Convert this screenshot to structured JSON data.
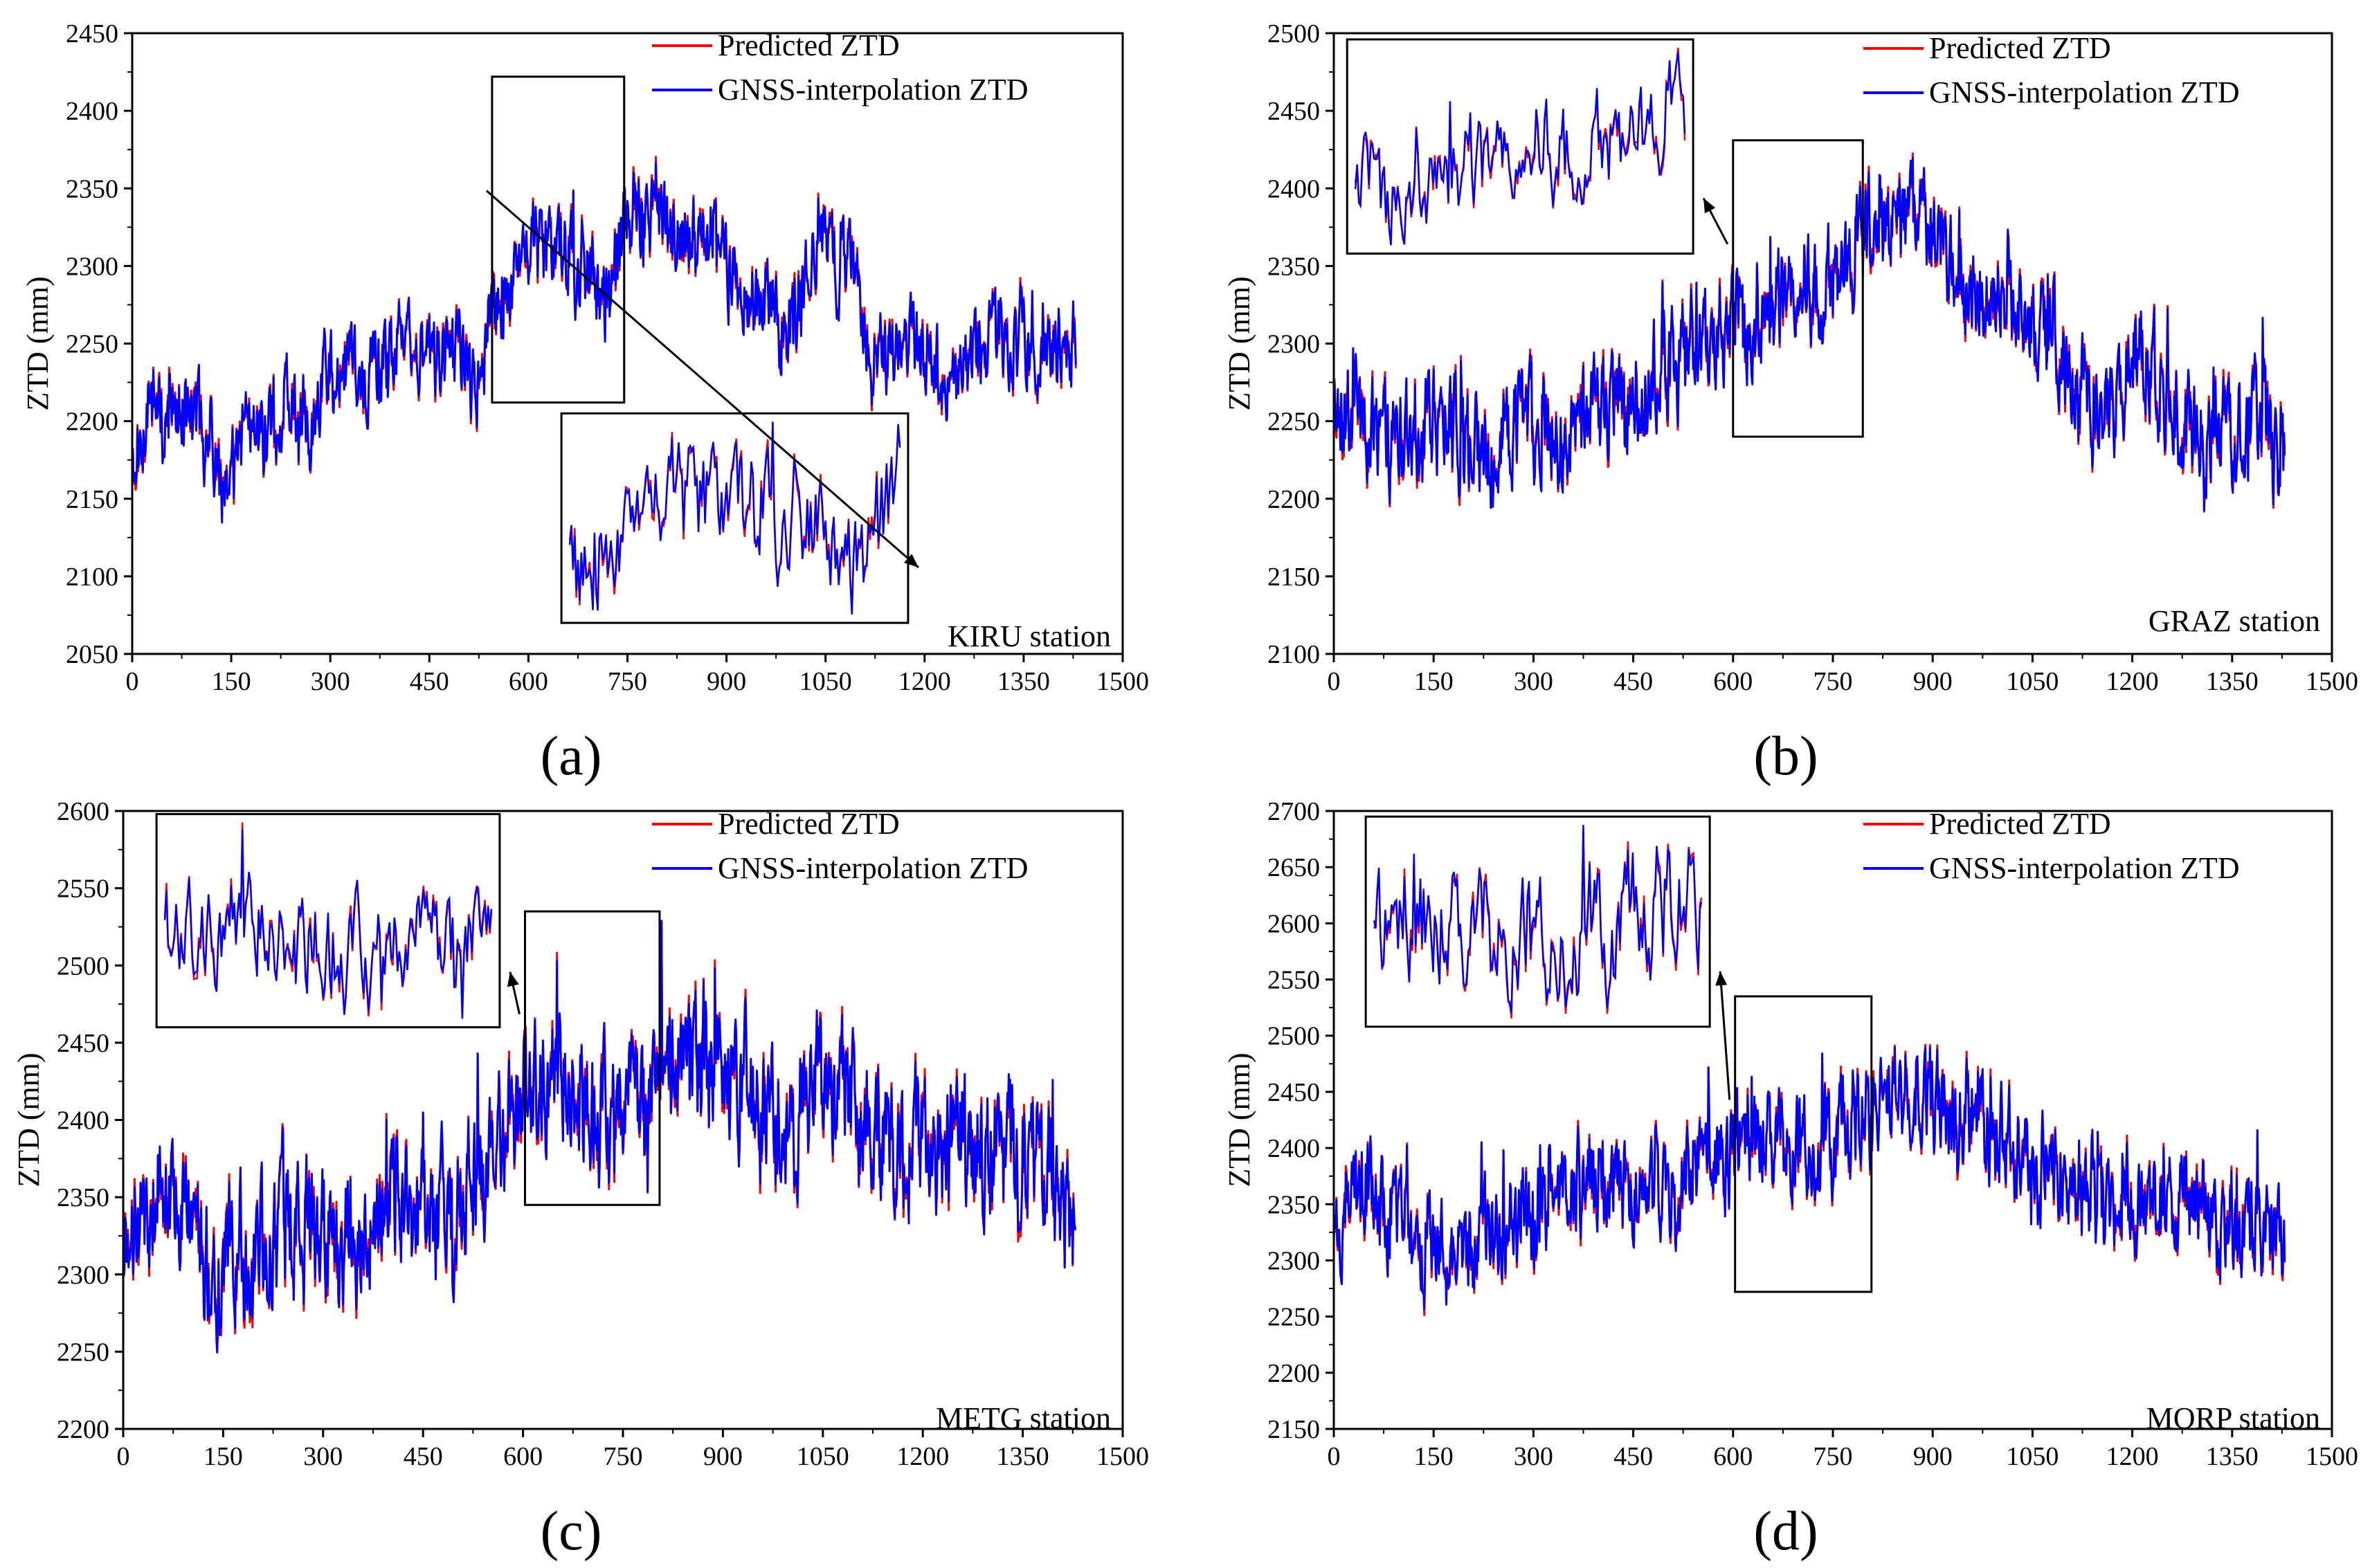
{
  "colors": {
    "predicted": "#ff0000",
    "gnss": "#0000ff",
    "axis": "#000000"
  },
  "legend": {
    "predicted": "Predicted ZTD",
    "gnss": "GNSS-interpolation ZTD"
  },
  "chart_data": [
    {
      "type": "line",
      "panel_label": "(a)",
      "station": "KIRU station",
      "ylabel": "ZTD (mm)",
      "xlabel": "",
      "xlim": [
        0,
        1500
      ],
      "ylim": [
        2050,
        2450
      ],
      "x_ticks": [
        "0",
        "150",
        "300",
        "450",
        "600",
        "750",
        "900",
        "1050",
        "1200",
        "1350",
        "1500"
      ],
      "y_ticks": [
        "2050",
        "2100",
        "2150",
        "2200",
        "2250",
        "2300",
        "2350",
        "2400",
        "2450"
      ],
      "zoom_box": {
        "x_range": [
          545,
          745
        ],
        "y_range": [
          2212,
          2422
        ]
      },
      "inset": {
        "x_range": [
          650,
          1175
        ],
        "y_range": [
          2070,
          2205
        ]
      },
      "series_key": [
        {
          "x": 0,
          "y": 2175
        },
        {
          "x": 30,
          "y": 2220
        },
        {
          "x": 60,
          "y": 2210
        },
        {
          "x": 90,
          "y": 2200
        },
        {
          "x": 120,
          "y": 2195
        },
        {
          "x": 140,
          "y": 2140
        },
        {
          "x": 160,
          "y": 2180
        },
        {
          "x": 190,
          "y": 2195
        },
        {
          "x": 230,
          "y": 2210
        },
        {
          "x": 270,
          "y": 2200
        },
        {
          "x": 300,
          "y": 2235
        },
        {
          "x": 330,
          "y": 2230
        },
        {
          "x": 370,
          "y": 2230
        },
        {
          "x": 410,
          "y": 2245
        },
        {
          "x": 440,
          "y": 2240
        },
        {
          "x": 470,
          "y": 2240
        },
        {
          "x": 500,
          "y": 2245
        },
        {
          "x": 520,
          "y": 2220
        },
        {
          "x": 540,
          "y": 2255
        },
        {
          "x": 560,
          "y": 2280
        },
        {
          "x": 600,
          "y": 2310
        },
        {
          "x": 640,
          "y": 2310
        },
        {
          "x": 680,
          "y": 2300
        },
        {
          "x": 720,
          "y": 2270
        },
        {
          "x": 760,
          "y": 2345
        },
        {
          "x": 800,
          "y": 2330
        },
        {
          "x": 840,
          "y": 2310
        },
        {
          "x": 880,
          "y": 2325
        },
        {
          "x": 920,
          "y": 2290
        },
        {
          "x": 960,
          "y": 2270
        },
        {
          "x": 1000,
          "y": 2255
        },
        {
          "x": 1040,
          "y": 2330
        },
        {
          "x": 1080,
          "y": 2300
        },
        {
          "x": 1120,
          "y": 2250
        },
        {
          "x": 1160,
          "y": 2240
        },
        {
          "x": 1200,
          "y": 2255
        },
        {
          "x": 1240,
          "y": 2230
        },
        {
          "x": 1280,
          "y": 2245
        },
        {
          "x": 1320,
          "y": 2250
        },
        {
          "x": 1360,
          "y": 2248
        },
        {
          "x": 1400,
          "y": 2245
        },
        {
          "x": 1430,
          "y": 2250
        }
      ],
      "amplitude": 18,
      "point_count": 1430,
      "seed": 11
    },
    {
      "type": "line",
      "panel_label": "(b)",
      "station": "GRAZ station",
      "ylabel": "ZTD (mm)",
      "xlabel": "",
      "xlim": [
        0,
        1500
      ],
      "ylim": [
        2100,
        2500
      ],
      "x_ticks": [
        "0",
        "150",
        "300",
        "450",
        "600",
        "750",
        "900",
        "1050",
        "1200",
        "1350",
        "1500"
      ],
      "y_ticks": [
        "2100",
        "2150",
        "2200",
        "2250",
        "2300",
        "2350",
        "2400",
        "2450",
        "2500"
      ],
      "zoom_box": {
        "x_range": [
          600,
          795
        ],
        "y_range": [
          2240,
          2431
        ]
      },
      "inset": {
        "x_range": [
          20,
          540
        ],
        "y_range": [
          2358,
          2496
        ]
      },
      "series_key": [
        {
          "x": 0,
          "y": 2270
        },
        {
          "x": 40,
          "y": 2250
        },
        {
          "x": 80,
          "y": 2245
        },
        {
          "x": 120,
          "y": 2240
        },
        {
          "x": 160,
          "y": 2250
        },
        {
          "x": 200,
          "y": 2230
        },
        {
          "x": 240,
          "y": 2235
        },
        {
          "x": 280,
          "y": 2250
        },
        {
          "x": 320,
          "y": 2245
        },
        {
          "x": 360,
          "y": 2255
        },
        {
          "x": 400,
          "y": 2260
        },
        {
          "x": 440,
          "y": 2265
        },
        {
          "x": 480,
          "y": 2275
        },
        {
          "x": 520,
          "y": 2290
        },
        {
          "x": 560,
          "y": 2300
        },
        {
          "x": 600,
          "y": 2310
        },
        {
          "x": 640,
          "y": 2320
        },
        {
          "x": 680,
          "y": 2330
        },
        {
          "x": 720,
          "y": 2340
        },
        {
          "x": 760,
          "y": 2340
        },
        {
          "x": 800,
          "y": 2370
        },
        {
          "x": 840,
          "y": 2375
        },
        {
          "x": 880,
          "y": 2380
        },
        {
          "x": 920,
          "y": 2360
        },
        {
          "x": 960,
          "y": 2330
        },
        {
          "x": 1000,
          "y": 2340
        },
        {
          "x": 1040,
          "y": 2320
        },
        {
          "x": 1080,
          "y": 2300
        },
        {
          "x": 1120,
          "y": 2270
        },
        {
          "x": 1160,
          "y": 2265
        },
        {
          "x": 1200,
          "y": 2300
        },
        {
          "x": 1240,
          "y": 2270
        },
        {
          "x": 1280,
          "y": 2250
        },
        {
          "x": 1320,
          "y": 2245
        },
        {
          "x": 1360,
          "y": 2245
        },
        {
          "x": 1400,
          "y": 2250
        },
        {
          "x": 1430,
          "y": 2215
        }
      ],
      "amplitude": 22,
      "point_count": 1430,
      "seed": 23
    },
    {
      "type": "line",
      "panel_label": "(c)",
      "station": "METG station",
      "ylabel": "ZTD (mm)",
      "xlabel": "",
      "xlim": [
        0,
        1500
      ],
      "ylim": [
        2200,
        2600
      ],
      "x_ticks": [
        "0",
        "150",
        "300",
        "450",
        "600",
        "750",
        "900",
        "1050",
        "1200",
        "1350",
        "1500"
      ],
      "y_ticks": [
        "2200",
        "2250",
        "2300",
        "2350",
        "2400",
        "2450",
        "2500",
        "2550",
        "2600"
      ],
      "zoom_box": {
        "x_range": [
          603,
          805
        ],
        "y_range": [
          2345,
          2535
        ]
      },
      "inset": {
        "x_range": [
          50,
          565
        ],
        "y_range": [
          2460,
          2598
        ]
      },
      "series_key": [
        {
          "x": 0,
          "y": 2340
        },
        {
          "x": 40,
          "y": 2345
        },
        {
          "x": 80,
          "y": 2350
        },
        {
          "x": 120,
          "y": 2320
        },
        {
          "x": 160,
          "y": 2310
        },
        {
          "x": 200,
          "y": 2305
        },
        {
          "x": 240,
          "y": 2330
        },
        {
          "x": 280,
          "y": 2330
        },
        {
          "x": 320,
          "y": 2320
        },
        {
          "x": 360,
          "y": 2340
        },
        {
          "x": 400,
          "y": 2350
        },
        {
          "x": 440,
          "y": 2345
        },
        {
          "x": 480,
          "y": 2340
        },
        {
          "x": 520,
          "y": 2355
        },
        {
          "x": 560,
          "y": 2390
        },
        {
          "x": 600,
          "y": 2420
        },
        {
          "x": 640,
          "y": 2430
        },
        {
          "x": 680,
          "y": 2420
        },
        {
          "x": 720,
          "y": 2410
        },
        {
          "x": 760,
          "y": 2410
        },
        {
          "x": 800,
          "y": 2430
        },
        {
          "x": 840,
          "y": 2440
        },
        {
          "x": 880,
          "y": 2430
        },
        {
          "x": 920,
          "y": 2420
        },
        {
          "x": 960,
          "y": 2410
        },
        {
          "x": 1000,
          "y": 2400
        },
        {
          "x": 1040,
          "y": 2420
        },
        {
          "x": 1080,
          "y": 2410
        },
        {
          "x": 1120,
          "y": 2390
        },
        {
          "x": 1160,
          "y": 2370
        },
        {
          "x": 1200,
          "y": 2390
        },
        {
          "x": 1240,
          "y": 2370
        },
        {
          "x": 1280,
          "y": 2385
        },
        {
          "x": 1320,
          "y": 2380
        },
        {
          "x": 1360,
          "y": 2375
        },
        {
          "x": 1400,
          "y": 2350
        },
        {
          "x": 1430,
          "y": 2340
        }
      ],
      "amplitude": 28,
      "point_count": 1430,
      "seed": 37
    },
    {
      "type": "line",
      "panel_label": "(d)",
      "station": "MORP station",
      "ylabel": "ZTD (mm)",
      "xlabel": "",
      "xlim": [
        0,
        1500
      ],
      "ylim": [
        2150,
        2700
      ],
      "x_ticks": [
        "0",
        "150",
        "300",
        "450",
        "600",
        "750",
        "900",
        "1050",
        "1200",
        "1350",
        "1500"
      ],
      "y_ticks": [
        "2150",
        "2200",
        "2250",
        "2300",
        "2350",
        "2400",
        "2450",
        "2500",
        "2550",
        "2600",
        "2650",
        "2700"
      ],
      "zoom_box": {
        "x_range": [
          603,
          808
        ],
        "y_range": [
          2272,
          2535
        ]
      },
      "inset": {
        "x_range": [
          48,
          565
        ],
        "y_range": [
          2508,
          2695
        ]
      },
      "series_key": [
        {
          "x": 0,
          "y": 2340
        },
        {
          "x": 40,
          "y": 2370
        },
        {
          "x": 80,
          "y": 2340
        },
        {
          "x": 120,
          "y": 2320
        },
        {
          "x": 160,
          "y": 2310
        },
        {
          "x": 200,
          "y": 2300
        },
        {
          "x": 240,
          "y": 2320
        },
        {
          "x": 280,
          "y": 2335
        },
        {
          "x": 320,
          "y": 2350
        },
        {
          "x": 360,
          "y": 2365
        },
        {
          "x": 400,
          "y": 2370
        },
        {
          "x": 440,
          "y": 2360
        },
        {
          "x": 480,
          "y": 2370
        },
        {
          "x": 520,
          "y": 2380
        },
        {
          "x": 560,
          "y": 2400
        },
        {
          "x": 600,
          "y": 2395
        },
        {
          "x": 640,
          "y": 2420
        },
        {
          "x": 680,
          "y": 2410
        },
        {
          "x": 720,
          "y": 2400
        },
        {
          "x": 760,
          "y": 2415
        },
        {
          "x": 800,
          "y": 2430
        },
        {
          "x": 840,
          "y": 2450
        },
        {
          "x": 880,
          "y": 2450
        },
        {
          "x": 920,
          "y": 2420
        },
        {
          "x": 960,
          "y": 2420
        },
        {
          "x": 1000,
          "y": 2410
        },
        {
          "x": 1040,
          "y": 2400
        },
        {
          "x": 1080,
          "y": 2385
        },
        {
          "x": 1120,
          "y": 2375
        },
        {
          "x": 1160,
          "y": 2345
        },
        {
          "x": 1200,
          "y": 2355
        },
        {
          "x": 1240,
          "y": 2350
        },
        {
          "x": 1280,
          "y": 2345
        },
        {
          "x": 1320,
          "y": 2335
        },
        {
          "x": 1360,
          "y": 2330
        },
        {
          "x": 1400,
          "y": 2330
        },
        {
          "x": 1430,
          "y": 2300
        }
      ],
      "amplitude": 30,
      "point_count": 1430,
      "seed": 53
    }
  ]
}
